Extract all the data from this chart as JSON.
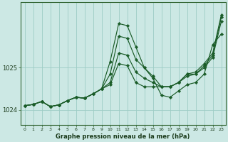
{
  "xlabel": "Graphe pression niveau de la mer (hPa)",
  "background_color": "#cce8e4",
  "grid_color": "#9dccc4",
  "line_color": "#1a5c28",
  "marker_color": "#1a5c28",
  "ylim": [
    1023.65,
    1026.55
  ],
  "xlim": [
    -0.5,
    23.5
  ],
  "yticks": [
    1024,
    1025
  ],
  "xticks": [
    0,
    1,
    2,
    3,
    4,
    5,
    6,
    7,
    8,
    9,
    10,
    11,
    12,
    13,
    14,
    15,
    16,
    17,
    18,
    19,
    20,
    21,
    22,
    23
  ],
  "series": [
    [
      1024.1,
      1024.13,
      1024.2,
      1024.08,
      1024.12,
      1024.22,
      1024.3,
      1024.28,
      1024.38,
      1024.5,
      1025.15,
      1026.05,
      1026.0,
      1025.5,
      1025.0,
      1024.75,
      1024.35,
      1024.3,
      1024.45,
      1024.6,
      1024.65,
      1024.85,
      1025.55,
      1025.8
    ],
    [
      1024.1,
      1024.13,
      1024.2,
      1024.08,
      1024.12,
      1024.22,
      1024.3,
      1024.28,
      1024.38,
      1024.5,
      1024.85,
      1025.75,
      1025.7,
      1025.2,
      1025.0,
      1024.8,
      1024.55,
      1024.55,
      1024.65,
      1024.85,
      1024.9,
      1025.1,
      1025.35,
      1026.25
    ],
    [
      1024.1,
      1024.13,
      1024.2,
      1024.08,
      1024.12,
      1024.22,
      1024.3,
      1024.28,
      1024.38,
      1024.5,
      1024.65,
      1025.35,
      1025.3,
      1024.9,
      1024.75,
      1024.65,
      1024.55,
      1024.55,
      1024.65,
      1024.85,
      1024.85,
      1025.05,
      1025.3,
      1026.2
    ],
    [
      1024.1,
      1024.13,
      1024.2,
      1024.08,
      1024.12,
      1024.22,
      1024.3,
      1024.28,
      1024.38,
      1024.5,
      1024.6,
      1025.1,
      1025.05,
      1024.65,
      1024.55,
      1024.55,
      1024.55,
      1024.55,
      1024.65,
      1024.8,
      1024.85,
      1025.0,
      1025.25,
      1026.1
    ]
  ]
}
